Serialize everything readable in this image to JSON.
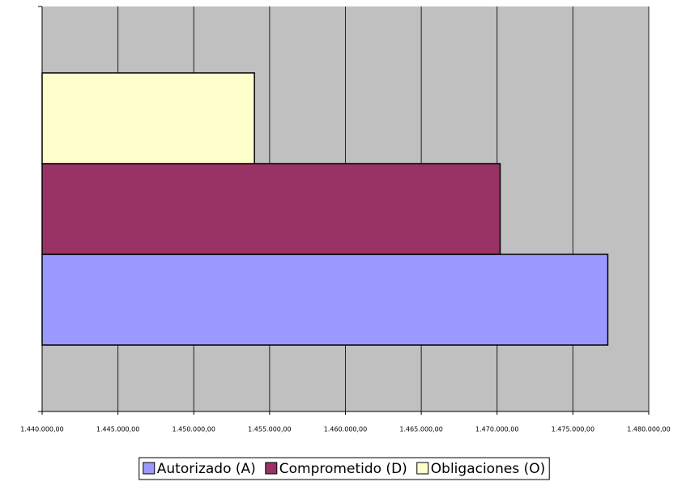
{
  "chart_data": {
    "type": "barh",
    "categories": [
      null
    ],
    "series": [
      {
        "name": "Autorizado (A)",
        "color": "#9999ff",
        "values": [
          1477300
        ]
      },
      {
        "name": "Comprometido (D)",
        "color": "#993366",
        "values": [
          1470200
        ]
      },
      {
        "name": "Obligaciones (O)",
        "color": "#ffffcc",
        "values": [
          1454000
        ]
      }
    ],
    "xlim": [
      1440000,
      1480000
    ],
    "xticks": [
      {
        "value": 1440000,
        "label": "1.440.000,00"
      },
      {
        "value": 1445000,
        "label": "1.445.000,00"
      },
      {
        "value": 1450000,
        "label": "1.450.000,00"
      },
      {
        "value": 1455000,
        "label": "1.455.000,00"
      },
      {
        "value": 1460000,
        "label": "1.460.000,00"
      },
      {
        "value": 1465000,
        "label": "1.465.000,00"
      },
      {
        "value": 1470000,
        "label": "1.470.000,00"
      },
      {
        "value": 1475000,
        "label": "1.475.000,00"
      },
      {
        "value": 1480000,
        "label": "1.480.000,00"
      }
    ],
    "grid": true,
    "plot_background": "#c0c0c0",
    "legend": "bottom"
  }
}
